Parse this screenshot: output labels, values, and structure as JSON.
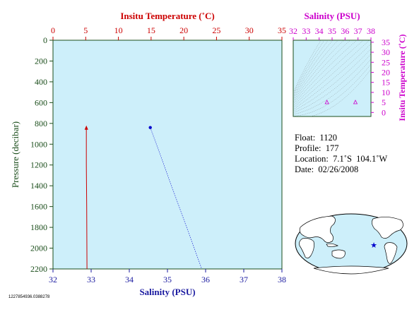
{
  "chart_data": [
    {
      "type": "line",
      "title": "",
      "top_axis": {
        "label": "Insitu Temperature (˚C)",
        "range": [
          0,
          35
        ],
        "ticks": [
          "0",
          "5",
          "10",
          "15",
          "20",
          "25",
          "30",
          "35"
        ]
      },
      "bottom_axis": {
        "label": "Salinity (PSU)",
        "range": [
          32,
          38
        ],
        "ticks": [
          "32",
          "33",
          "34",
          "35",
          "36",
          "37",
          "38"
        ]
      },
      "left_axis": {
        "label": "Pressure (decibar)",
        "range": [
          0,
          2200
        ],
        "inverted": true,
        "ticks": [
          "0",
          "200",
          "400",
          "600",
          "800",
          "1000",
          "1200",
          "1400",
          "1600",
          "1800",
          "2000",
          "2200"
        ]
      },
      "series": [
        {
          "axis": "temperature",
          "color": "#cc0000",
          "points": [
            {
              "x": 5.1,
              "y": 840
            },
            {
              "x": 5.1,
              "y": 1200
            },
            {
              "x": 5.15,
              "y": 1600
            },
            {
              "x": 5.2,
              "y": 2200
            }
          ]
        },
        {
          "axis": "salinity",
          "color": "#0000cc",
          "points": [
            {
              "x": 34.55,
              "y": 840
            },
            {
              "x": 35.9,
              "y": 2200
            }
          ]
        }
      ],
      "grid": false,
      "background": "#cdeffa"
    },
    {
      "type": "scatter",
      "title": "",
      "x_axis": {
        "label": "Salinity (PSU)",
        "range": [
          32,
          38
        ],
        "ticks": [
          "32",
          "33",
          "34",
          "35",
          "36",
          "37",
          "38"
        ]
      },
      "y_axis": {
        "label": "Insitu Temperature (˚C)",
        "range": [
          -2,
          36
        ],
        "ticks": [
          "0",
          "5",
          "10",
          "15",
          "20",
          "25",
          "30",
          "35"
        ]
      },
      "points": [
        {
          "x": 34.6,
          "y": 5.2
        },
        {
          "x": 36.8,
          "y": 5.2
        }
      ],
      "color": "#cc00cc",
      "background": "#cdeffa"
    }
  ],
  "info": {
    "float": "Float:  1120",
    "profile": "Profile:  177",
    "location": "Location:  7.1˚S  104.1˚W",
    "date": "Date:  02/26/2008"
  },
  "footnote": "1227854936.0388278",
  "map": {
    "marker_color": "#0000cc"
  }
}
